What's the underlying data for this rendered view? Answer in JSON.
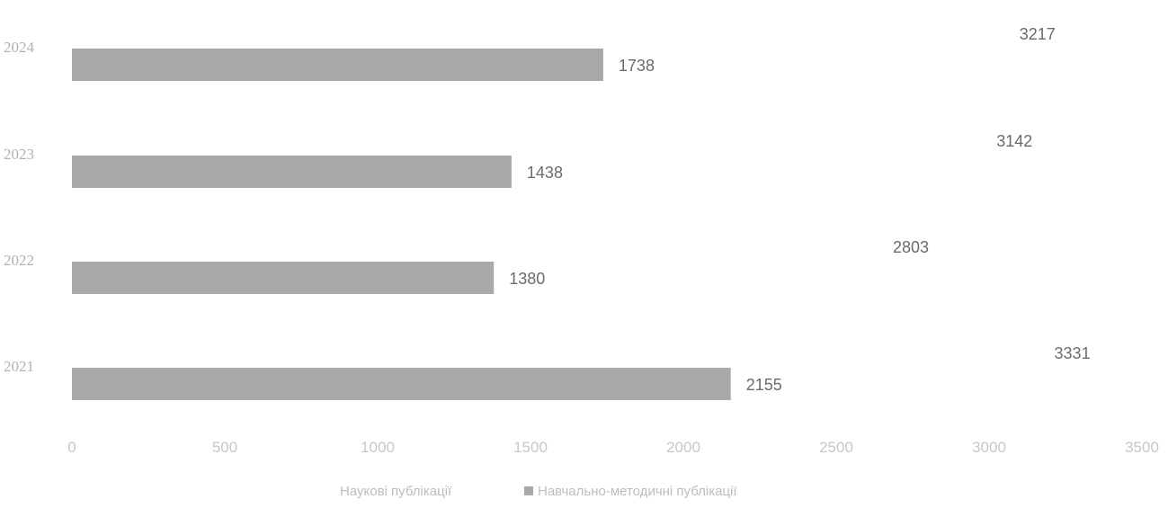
{
  "chart_data": {
    "type": "bar",
    "orientation": "horizontal",
    "title": "",
    "categories": [
      "2024",
      "2023",
      "2022",
      "2021"
    ],
    "series": [
      {
        "name": "Наукові публікації",
        "values": [
          3217,
          3142,
          2803,
          3331
        ],
        "color": "#ffffff"
      },
      {
        "name": "Навчально-методичні публікації",
        "values": [
          1738,
          1438,
          1380,
          2155
        ],
        "color": "#a9a9a9"
      }
    ],
    "xticks": [
      "0",
      "500",
      "1000",
      "1500",
      "2000",
      "2500",
      "3000",
      "3500"
    ],
    "xlim": [
      0,
      3500
    ],
    "grid": false,
    "legend": "bottom"
  }
}
